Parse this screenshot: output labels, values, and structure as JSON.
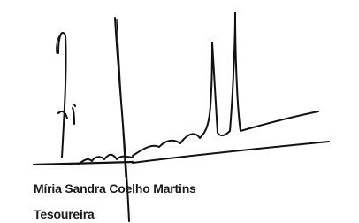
{
  "signature": {
    "name": "Míria Sandra Coelho Martins",
    "role": "Tesoureira"
  }
}
